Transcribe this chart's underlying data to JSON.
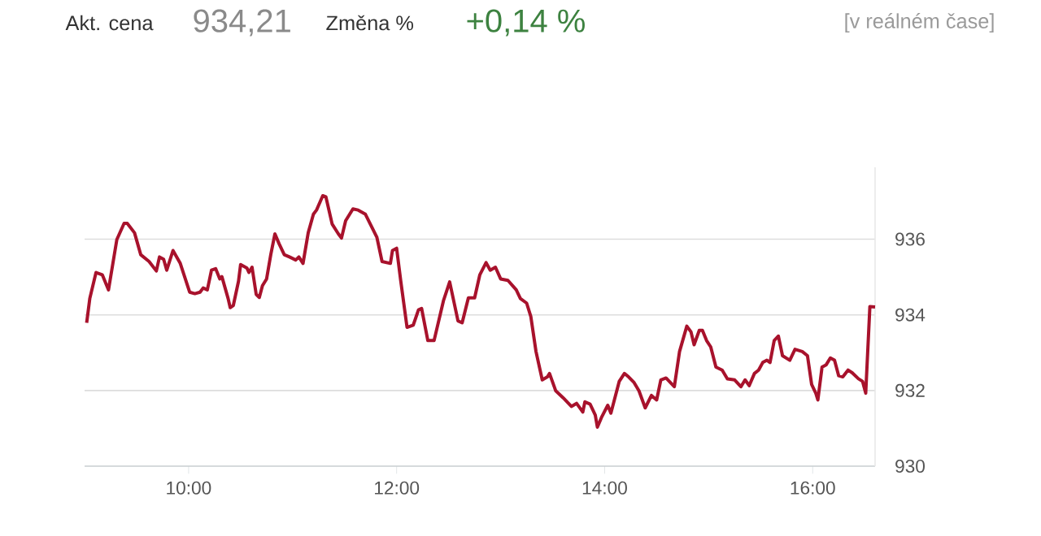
{
  "chart_data": {
    "type": "line",
    "annotations": [
      "Akt. cena",
      "934,21",
      "Změna %",
      "+0,14 %",
      "[v reálném čase]"
    ],
    "xlim": [
      9,
      16.6
    ],
    "ylim": [
      930,
      937.9
    ],
    "xticks": [
      {
        "value": 10,
        "label": "10:00"
      },
      {
        "value": 12,
        "label": "12:00"
      },
      {
        "value": 14,
        "label": "14:00"
      },
      {
        "value": 16,
        "label": "16:00"
      }
    ],
    "yticks": [
      930,
      932,
      934,
      936
    ],
    "grid": "y",
    "marker": "none",
    "line_style": "solid",
    "x": [
      9.02,
      9.05,
      9.11,
      9.17,
      9.23,
      9.31,
      9.38,
      9.41,
      9.48,
      9.54,
      9.62,
      9.69,
      9.72,
      9.76,
      9.79,
      9.85,
      9.92,
      10.01,
      10.06,
      10.11,
      10.14,
      10.18,
      10.22,
      10.26,
      10.3,
      10.32,
      10.38,
      10.4,
      10.43,
      10.48,
      10.5,
      10.56,
      10.58,
      10.61,
      10.65,
      10.68,
      10.71,
      10.75,
      10.79,
      10.83,
      10.87,
      10.92,
      10.97,
      11.03,
      11.06,
      11.1,
      11.15,
      11.2,
      11.23,
      11.29,
      11.32,
      11.38,
      11.44,
      11.47,
      11.51,
      11.58,
      11.63,
      11.7,
      11.81,
      11.86,
      11.94,
      11.96,
      12.0,
      12.04,
      12.1,
      12.16,
      12.21,
      12.24,
      12.3,
      12.36,
      12.45,
      12.51,
      12.59,
      12.63,
      12.69,
      12.75,
      12.8,
      12.86,
      12.9,
      12.95,
      13.0,
      13.07,
      13.15,
      13.19,
      13.25,
      13.29,
      13.34,
      13.4,
      13.45,
      13.47,
      13.53,
      13.6,
      13.68,
      13.73,
      13.79,
      13.81,
      13.86,
      13.91,
      13.93,
      13.97,
      14.03,
      14.06,
      14.14,
      14.19,
      14.23,
      14.28,
      14.33,
      14.39,
      14.45,
      14.5,
      14.54,
      14.59,
      14.67,
      14.72,
      14.79,
      14.83,
      14.86,
      14.91,
      14.94,
      14.98,
      15.02,
      15.07,
      15.13,
      15.18,
      15.25,
      15.31,
      15.35,
      15.39,
      15.44,
      15.48,
      15.52,
      15.56,
      15.59,
      15.63,
      15.67,
      15.71,
      15.78,
      15.83,
      15.9,
      15.95,
      15.99,
      16.03,
      16.05,
      16.09,
      16.13,
      16.17,
      16.21,
      16.25,
      16.29,
      16.34,
      16.38,
      16.44,
      16.48,
      16.51,
      16.55,
      16.6
    ],
    "series": [
      {
        "color": "#a8122c",
        "values": [
          933.79,
          934.43,
          935.12,
          935.06,
          934.66,
          935.99,
          936.42,
          936.42,
          936.17,
          935.59,
          935.41,
          935.16,
          935.53,
          935.47,
          935.18,
          935.7,
          935.36,
          934.6,
          934.56,
          934.6,
          934.71,
          934.66,
          935.18,
          935.22,
          934.95,
          935.01,
          934.43,
          934.19,
          934.25,
          934.89,
          935.33,
          935.24,
          935.12,
          935.26,
          934.54,
          934.46,
          934.77,
          934.95,
          935.59,
          936.14,
          935.88,
          935.59,
          935.53,
          935.45,
          935.53,
          935.36,
          936.17,
          936.66,
          936.77,
          937.15,
          937.12,
          936.4,
          936.14,
          936.03,
          936.49,
          936.8,
          936.77,
          936.66,
          936.05,
          935.41,
          935.36,
          935.7,
          935.76,
          934.89,
          933.67,
          933.73,
          934.13,
          934.17,
          933.32,
          933.32,
          934.37,
          934.87,
          933.84,
          933.79,
          934.45,
          934.45,
          935.06,
          935.38,
          935.18,
          935.26,
          934.95,
          934.91,
          934.66,
          934.43,
          934.31,
          933.96,
          933.03,
          932.28,
          932.36,
          932.45,
          931.99,
          931.81,
          931.58,
          931.66,
          931.43,
          931.7,
          931.64,
          931.35,
          931.03,
          931.29,
          931.61,
          931.4,
          932.24,
          932.45,
          932.36,
          932.22,
          931.99,
          931.54,
          931.87,
          931.75,
          932.28,
          932.33,
          932.1,
          933.03,
          933.7,
          933.55,
          933.21,
          933.59,
          933.59,
          933.32,
          933.15,
          932.62,
          932.54,
          932.31,
          932.28,
          932.1,
          932.28,
          932.13,
          932.45,
          932.54,
          932.74,
          932.8,
          932.74,
          933.32,
          933.44,
          932.92,
          932.8,
          933.09,
          933.03,
          932.92,
          932.16,
          931.93,
          931.75,
          932.62,
          932.68,
          932.86,
          932.8,
          932.39,
          932.36,
          932.54,
          932.47,
          932.31,
          932.24,
          931.93,
          934.22,
          934.21
        ]
      }
    ]
  }
}
